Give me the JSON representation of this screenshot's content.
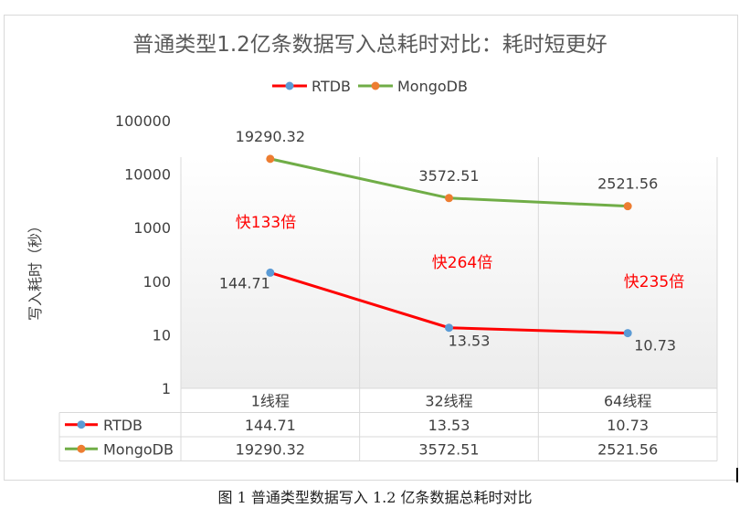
{
  "caption": "图 1  普通类型数据写入 1.2 亿条数据总耗时对比",
  "chart_data": {
    "type": "line",
    "title": "普通类型1.2亿条数据写入总耗时对比：耗时短更好",
    "ylabel": "写入耗时（秒）",
    "yscale": "log",
    "ylim": [
      1,
      100000
    ],
    "yticks": [
      "1",
      "10",
      "100",
      "1000",
      "10000",
      "100000"
    ],
    "categories": [
      "1线程",
      "32线程",
      "64线程"
    ],
    "legend_position": "top",
    "series": [
      {
        "name": "RTDB",
        "values": [
          144.71,
          13.53,
          10.73
        ],
        "labels": [
          "144.71",
          "13.53",
          "10.73"
        ],
        "color": "#ff0000",
        "marker_color": "#5b9bd5"
      },
      {
        "name": "MongoDB",
        "values": [
          19290.32,
          3572.51,
          2521.56
        ],
        "labels": [
          "19290.32",
          "3572.51",
          "2521.56"
        ],
        "color": "#70ad47",
        "marker_color": "#ed7d31"
      }
    ],
    "annotations": [
      "快133倍",
      "快264倍",
      "快235倍"
    ],
    "annotation_color": "#ff0000",
    "data_table": true
  }
}
